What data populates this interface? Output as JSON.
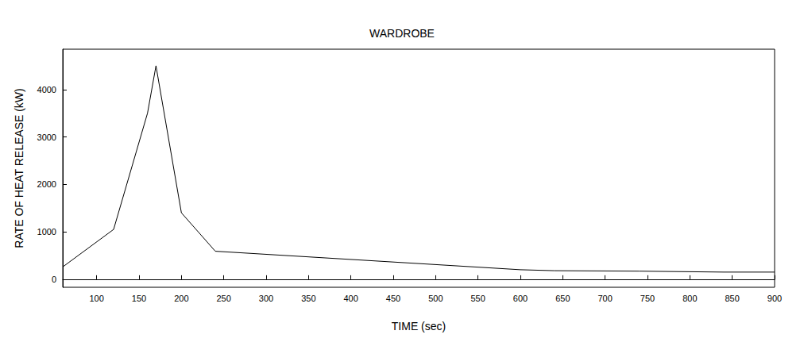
{
  "chart_data": {
    "type": "line",
    "title": "WARDROBE",
    "x_label": "TIME (sec)",
    "y_label": "RATE OF HEAT RELEASE (kW)",
    "x": [
      60,
      120,
      160,
      170,
      200,
      240,
      600,
      640,
      740,
      840,
      900
    ],
    "values": [
      260,
      1050,
      3500,
      4500,
      1400,
      590,
      200,
      180,
      170,
      150,
      150
    ],
    "color": "#000000",
    "xlim": [
      60,
      900
    ],
    "xticks": [
      100,
      150,
      200,
      250,
      300,
      350,
      400,
      450,
      500,
      550,
      600,
      650,
      700,
      750,
      800,
      850,
      900
    ],
    "ylim": [
      -170,
      4850
    ],
    "yticks": [
      0,
      1000,
      2000,
      3000,
      4000
    ],
    "grid": false
  }
}
